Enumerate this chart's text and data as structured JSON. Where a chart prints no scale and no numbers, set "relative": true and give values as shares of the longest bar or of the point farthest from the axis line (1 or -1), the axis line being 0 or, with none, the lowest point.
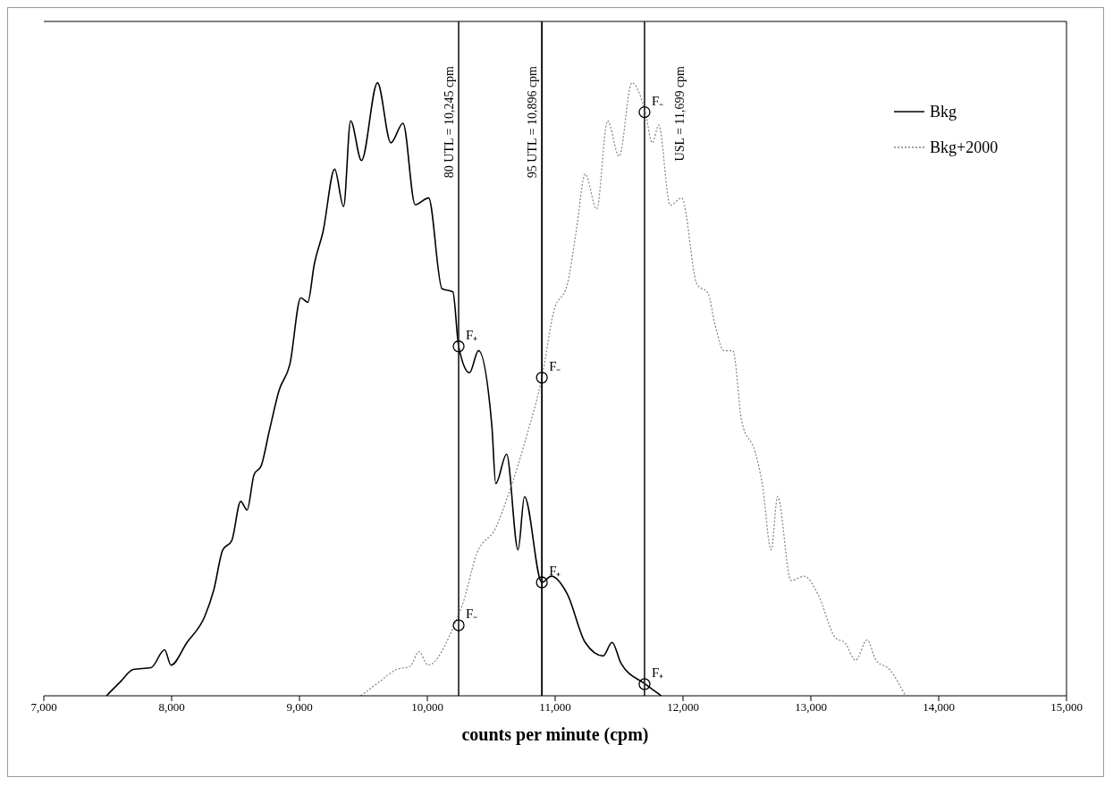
{
  "chart_data": {
    "type": "line",
    "relative": true,
    "xlabel": "counts per minute (cpm)",
    "xlim": [
      7000,
      15000
    ],
    "xticks": [
      {
        "value": 7000,
        "label": "7,000"
      },
      {
        "value": 8000,
        "label": "8,000"
      },
      {
        "value": 9000,
        "label": "9,000"
      },
      {
        "value": 10000,
        "label": "10,000"
      },
      {
        "value": 11000,
        "label": "11,000"
      },
      {
        "value": 12000,
        "label": "12,000"
      },
      {
        "value": 13000,
        "label": "13,000"
      },
      {
        "value": 14000,
        "label": "14,000"
      },
      {
        "value": 15000,
        "label": "15,000"
      }
    ],
    "tick_labels": "x",
    "grid": false,
    "legend": "top right",
    "marker": "none",
    "series": [
      {
        "name": "Bkg",
        "color": "#000000",
        "line_style": "solid",
        "x": [
          7490,
          7595,
          7700,
          7840,
          7945,
          7995,
          8120,
          8260,
          8330,
          8400,
          8470,
          8540,
          8590,
          8645,
          8700,
          8765,
          8840,
          8925,
          9010,
          9065,
          9115,
          9185,
          9275,
          9345,
          9400,
          9485,
          9610,
          9715,
          9810,
          9905,
          10010,
          10115,
          10200,
          10245,
          10330,
          10400,
          10505,
          10535,
          10620,
          10710,
          10760,
          10896,
          10970,
          11095,
          11235,
          11375,
          11445,
          11515,
          11705,
          11830
        ],
        "values": [
          0,
          0.022,
          0.043,
          0.046,
          0.075,
          0.05,
          0.087,
          0.13,
          0.173,
          0.238,
          0.253,
          0.317,
          0.303,
          0.361,
          0.375,
          0.433,
          0.498,
          0.541,
          0.649,
          0.642,
          0.703,
          0.758,
          0.859,
          0.798,
          0.938,
          0.873,
          1,
          0.902,
          0.934,
          0.801,
          0.812,
          0.664,
          0.659,
          0.57,
          0.527,
          0.563,
          0.44,
          0.346,
          0.394,
          0.238,
          0.325,
          0.185,
          0.195,
          0.166,
          0.087,
          0.065,
          0.087,
          0.053,
          0.019,
          0
        ]
      },
      {
        "name": "Bkg+2000",
        "color": "#808080",
        "line_style": "dotted",
        "x": [
          9480,
          9620,
          9760,
          9865,
          9935,
          10005,
          10210,
          10280,
          10385,
          10535,
          10640,
          10780,
          10896,
          10990,
          11095,
          11165,
          11235,
          11325,
          11410,
          11500,
          11600,
          11705,
          11760,
          11810,
          11900,
          11990,
          12110,
          12195,
          12250,
          12320,
          12390,
          12460,
          12565,
          12620,
          12690,
          12740,
          12845,
          12950,
          13055,
          13195,
          13265,
          13350,
          13440,
          13510,
          13615,
          13740
        ],
        "values": [
          0,
          0.022,
          0.043,
          0.048,
          0.072,
          0.05,
          0.115,
          0.152,
          0.231,
          0.274,
          0.332,
          0.426,
          0.519,
          0.628,
          0.671,
          0.758,
          0.851,
          0.794,
          0.938,
          0.88,
          1,
          0.952,
          0.902,
          0.931,
          0.8,
          0.812,
          0.671,
          0.657,
          0.606,
          0.563,
          0.563,
          0.447,
          0.397,
          0.346,
          0.238,
          0.325,
          0.188,
          0.195,
          0.166,
          0.094,
          0.087,
          0.058,
          0.091,
          0.058,
          0.043,
          0
        ]
      }
    ],
    "ref_lines": [
      {
        "axis": "x",
        "value": 10245,
        "label": "80 UTL = 10,245 cpm",
        "color": "#333333"
      },
      {
        "axis": "x",
        "value": 10896,
        "label": "95 UTL = 10,896 cpm",
        "color": "#000000"
      },
      {
        "axis": "x",
        "value": 11699,
        "label": "USL = 11,699 cpm",
        "color": "#333333"
      }
    ],
    "annotations": [
      {
        "text": "F₊",
        "x": 10245,
        "y": 0.57
      },
      {
        "text": "F₋",
        "x": 10245,
        "y": 0.115
      },
      {
        "text": "F₋",
        "x": 10896,
        "y": 0.519
      },
      {
        "text": "F₊",
        "x": 10896,
        "y": 0.185
      },
      {
        "text": "F₋",
        "x": 11699,
        "y": 0.952
      },
      {
        "text": "F₊",
        "x": 11699,
        "y": 0.019
      }
    ]
  }
}
